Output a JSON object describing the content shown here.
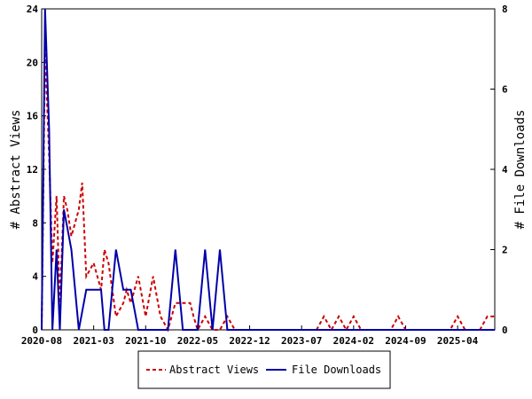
{
  "chart_data": {
    "type": "line",
    "x_tick_labels": [
      "2020-08",
      "2021-03",
      "2021-10",
      "2022-05",
      "2022-12",
      "2023-07",
      "2024-02",
      "2024-09",
      "2025-04"
    ],
    "y_left": {
      "label": "# Abstract Views",
      "range": [
        0,
        24
      ],
      "ticks": [
        "0",
        "4",
        "8",
        "12",
        "16",
        "20",
        "24"
      ]
    },
    "y_right": {
      "label": "# File Downloads",
      "range": [
        0,
        8
      ],
      "ticks": [
        "0",
        "2",
        "4",
        "6",
        "8"
      ]
    },
    "legend_position": "bottom",
    "grid": false,
    "series": [
      {
        "name": "Abstract Views",
        "axis": "left",
        "color": "#cc0000",
        "style": "dashed",
        "x": [
          "2020-08",
          "2020-08",
          "2020-09",
          "2020-09",
          "2020-10",
          "2020-10",
          "2020-11",
          "2020-11",
          "2020-12",
          "2021-01",
          "2021-01",
          "2021-02",
          "2021-03",
          "2021-04",
          "2021-04",
          "2021-05",
          "2021-06",
          "2021-07",
          "2021-07",
          "2021-08",
          "2021-09",
          "2021-10",
          "2021-11",
          "2021-12",
          "2022-01",
          "2022-02",
          "2022-03",
          "2022-04",
          "2022-04",
          "2022-05",
          "2022-06",
          "2022-07",
          "2022-08",
          "2022-09",
          "2022-10",
          "2022-11",
          "2022-12",
          "2023-01",
          "2023-02",
          "2023-03",
          "2023-05",
          "2023-07",
          "2023-09",
          "2023-10",
          "2023-11",
          "2023-12",
          "2024-01",
          "2024-02",
          "2024-03",
          "2024-05",
          "2024-07",
          "2024-08",
          "2024-09",
          "2024-11",
          "2025-01",
          "2025-03",
          "2025-04",
          "2025-05",
          "2025-07",
          "2025-08",
          "2025-09"
        ],
        "values": [
          0,
          21,
          13,
          5,
          10,
          2,
          10,
          9,
          7,
          9,
          11,
          4,
          5,
          3,
          6,
          5,
          1,
          2,
          3,
          2,
          4,
          1,
          4,
          1,
          0,
          2,
          2,
          2,
          1,
          0,
          1,
          0,
          0,
          1,
          0,
          0,
          0,
          0,
          0,
          0,
          0,
          0,
          0,
          1,
          0,
          1,
          0,
          1,
          0,
          0,
          0,
          1,
          0,
          0,
          0,
          0,
          1,
          0,
          0,
          1,
          1
        ]
      },
      {
        "name": "File Downloads",
        "axis": "right",
        "color": "#0000aa",
        "style": "solid",
        "x": [
          "2020-08",
          "2020-08",
          "2020-09",
          "2020-09",
          "2020-10",
          "2020-10",
          "2020-11",
          "2020-12",
          "2021-01",
          "2021-02",
          "2021-03",
          "2021-04",
          "2021-04",
          "2021-05",
          "2021-06",
          "2021-07",
          "2021-08",
          "2021-09",
          "2021-10",
          "2021-11",
          "2021-12",
          "2022-01",
          "2022-02",
          "2022-03",
          "2022-04",
          "2022-05",
          "2022-06",
          "2022-07",
          "2022-08",
          "2022-09",
          "2022-10",
          "2022-11",
          "2023-01",
          "2023-07",
          "2024-02",
          "2024-09",
          "2025-04",
          "2025-09"
        ],
        "values": [
          0,
          8,
          5,
          0,
          2,
          0,
          3,
          2,
          0,
          1,
          1,
          1,
          0,
          0,
          2,
          1,
          1,
          0,
          0,
          0,
          0,
          0,
          2,
          0,
          0,
          0,
          2,
          0,
          2,
          0,
          0,
          0,
          0,
          0,
          0,
          0,
          0,
          0
        ]
      }
    ]
  }
}
